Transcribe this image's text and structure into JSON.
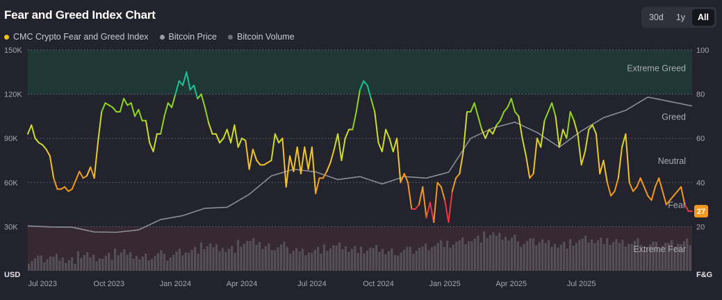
{
  "header": {
    "title": "Fear and Greed Index Chart"
  },
  "range_buttons": [
    {
      "label": "30d",
      "active": false
    },
    {
      "label": "1y",
      "active": false
    },
    {
      "label": "All",
      "active": true
    }
  ],
  "legend": [
    {
      "label": "CMC Crypto Fear and Greed Index",
      "color": "#f0c419"
    },
    {
      "label": "Bitcoin Price",
      "color": "#9a9ba3"
    },
    {
      "label": "Bitcoin Volume",
      "color": "#6f7078"
    }
  ],
  "chart_data": {
    "type": "line",
    "y_left_label": "USD",
    "y_right_label": "F&G",
    "y_left_ticks": [
      "150K",
      "120K",
      "90K",
      "60K",
      "30K"
    ],
    "y_left_range": [
      0,
      150000
    ],
    "y_right_ticks": [
      "100",
      "80",
      "60",
      "40",
      "20"
    ],
    "y_right_range": [
      0,
      100
    ],
    "x_ticks": [
      "Jul 2023",
      "Oct 2023",
      "Jan 2024",
      "Apr 2024",
      "Jul 2024",
      "Oct 2024",
      "Jan 2025",
      "Apr 2025",
      "Jul 2025"
    ],
    "zones": [
      {
        "label": "Extreme Greed",
        "from": 80,
        "to": 100,
        "color": "#1f3b37"
      },
      {
        "label": "Greed",
        "from": 60,
        "to": 80,
        "color": "none"
      },
      {
        "label": "Neutral",
        "from": 40,
        "to": 60,
        "color": "none"
      },
      {
        "label": "Fear",
        "from": 20,
        "to": 40,
        "color": "none"
      },
      {
        "label": "Extreme Fear",
        "from": 0,
        "to": 20,
        "color": "#3b2a33"
      }
    ],
    "current_value_badge": "27",
    "series": [
      {
        "name": "CMC Crypto Fear and Greed Index",
        "axis": "right",
        "x": [
          0,
          1,
          2,
          3,
          4,
          5,
          6,
          7,
          8,
          9,
          10,
          11,
          12,
          13,
          14,
          15,
          16,
          17,
          18,
          19,
          20,
          21,
          22,
          23,
          24,
          25,
          26,
          27,
          28,
          29,
          30,
          31,
          32,
          33,
          34,
          35,
          36,
          37,
          38,
          39,
          40,
          41,
          42,
          43,
          44,
          45,
          46,
          47,
          48,
          49,
          50,
          51,
          52,
          53,
          54,
          55,
          56,
          57,
          58,
          59,
          60,
          61,
          62,
          63,
          64,
          65,
          66,
          67,
          68,
          69,
          70,
          71,
          72,
          73,
          74,
          75,
          76,
          77,
          78,
          79,
          80,
          81,
          82,
          83,
          84,
          85,
          86,
          87,
          88,
          89,
          90,
          91,
          92,
          93,
          94,
          95,
          96,
          97,
          98,
          99,
          100,
          101,
          102,
          103,
          104,
          105,
          106,
          107,
          108,
          109,
          110,
          111,
          112,
          113,
          114,
          115,
          116,
          117,
          118,
          119,
          120,
          121,
          122,
          123,
          124,
          125,
          126,
          127,
          128,
          129,
          130,
          131,
          132,
          133,
          134,
          135,
          136,
          137,
          138,
          139,
          140,
          141,
          142,
          143,
          144,
          145,
          146,
          147,
          148,
          149,
          150,
          151,
          152,
          153,
          154,
          155,
          156,
          157,
          158,
          159,
          160,
          161,
          162,
          163,
          164,
          165,
          166,
          167,
          168,
          169,
          170,
          171,
          172,
          173,
          174,
          175,
          176,
          177,
          178,
          179,
          180
        ],
        "values": [
          62,
          66,
          60,
          58,
          57,
          55,
          52,
          42,
          37,
          37,
          38,
          36,
          37,
          41,
          45,
          42,
          43,
          47,
          42,
          58,
          72,
          76,
          75,
          74,
          72,
          72,
          78,
          75,
          76,
          70,
          73,
          68,
          68,
          58,
          54,
          62,
          62,
          70,
          76,
          74,
          80,
          86,
          84,
          90,
          82,
          84,
          78,
          80,
          74,
          67,
          62,
          62,
          58,
          60,
          64,
          58,
          66,
          56,
          60,
          59,
          46,
          55,
          50,
          48,
          48,
          49,
          50,
          62,
          58,
          60,
          38,
          52,
          45,
          56,
          44,
          56,
          46,
          56,
          35,
          42,
          42,
          45,
          49,
          55,
          62,
          50,
          60,
          64,
          64,
          72,
          82,
          86,
          84,
          78,
          72,
          58,
          54,
          64,
          60,
          54,
          60,
          40,
          44,
          40,
          28,
          28,
          30,
          38,
          24,
          31,
          22,
          40,
          38,
          32,
          22,
          36,
          42,
          44,
          54,
          72,
          72,
          76,
          70,
          64,
          60,
          64,
          62,
          66,
          68,
          72,
          74,
          78,
          72,
          70,
          60,
          52,
          42,
          44,
          60,
          56,
          68,
          72,
          76,
          70,
          56,
          64,
          60,
          72,
          68,
          62,
          48,
          54,
          64,
          66,
          62,
          44,
          50,
          40,
          34,
          36,
          42,
          56,
          62,
          40,
          36,
          38,
          42,
          38,
          34,
          32,
          38,
          42,
          36,
          30,
          32,
          34,
          36,
          38,
          30,
          27,
          27
        ]
      },
      {
        "name": "Bitcoin Price",
        "axis": "left",
        "x": [
          0,
          6,
          12,
          18,
          24,
          30,
          36,
          42,
          48,
          54,
          60,
          66,
          72,
          78,
          84,
          90,
          96,
          102,
          108,
          114,
          120,
          126,
          132,
          138,
          144,
          150,
          156,
          162,
          168,
          174,
          180
        ],
        "values": [
          30500,
          29800,
          29600,
          26400,
          26200,
          27800,
          34800,
          37500,
          42500,
          43200,
          52000,
          64500,
          69000,
          67200,
          62000,
          64000,
          59000,
          64000,
          63000,
          67000,
          90000,
          97000,
          101000,
          94000,
          84000,
          95000,
          104000,
          109000,
          118000,
          115000,
          112000
        ]
      },
      {
        "name": "Bitcoin Volume",
        "axis": "left",
        "note": "relative volume bars",
        "values": [
          0.2,
          0.25,
          0.3,
          0.2,
          0.35,
          0.25,
          0.3,
          0.4,
          0.3,
          0.25,
          0.35,
          0.3,
          0.45,
          0.5,
          0.6,
          0.55,
          0.5,
          0.65,
          0.7,
          0.55,
          0.6,
          0.5,
          0.45,
          0.5,
          0.55,
          0.6,
          0.5,
          0.45,
          0.5,
          0.4,
          0.45,
          0.5,
          0.6,
          0.7,
          0.65,
          0.75,
          0.8,
          0.9,
          0.85,
          0.8,
          0.7,
          0.75,
          0.7,
          0.65,
          0.7,
          0.8,
          0.75,
          0.7,
          0.65,
          0.7,
          0.6,
          0.65,
          0.7,
          0.75
        ]
      }
    ]
  }
}
